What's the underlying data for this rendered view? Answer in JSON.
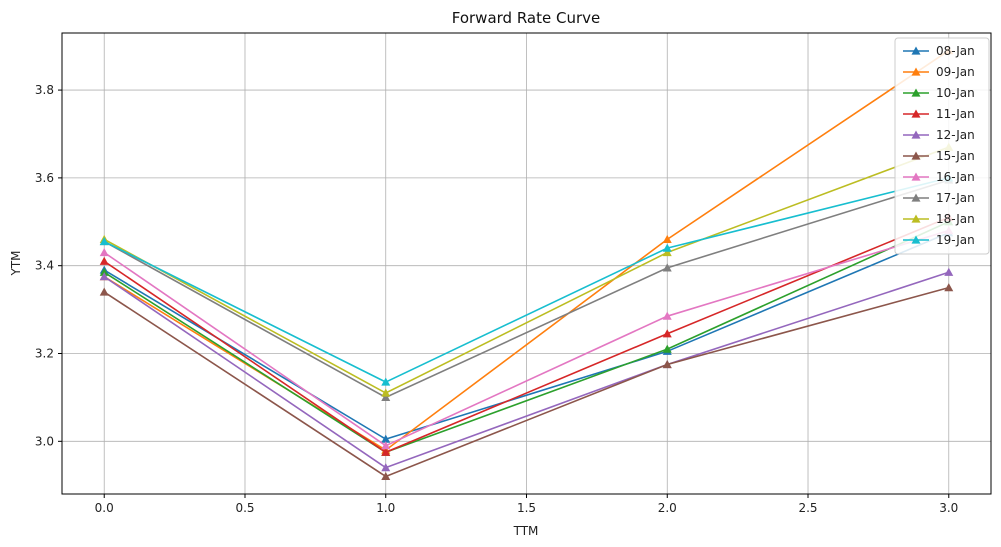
{
  "chart_data": {
    "type": "line",
    "title": "Forward Rate Curve",
    "xlabel": "TTM",
    "ylabel": "YTM",
    "x": [
      0,
      1,
      2,
      3
    ],
    "xlim": [
      -0.15,
      3.15
    ],
    "ylim": [
      2.88,
      3.93
    ],
    "xticks": [
      0,
      0.5,
      1,
      1.5,
      2,
      2.5,
      3
    ],
    "xtick_labels": [
      "0.0",
      "0.5",
      "1.0",
      "1.5",
      "2.0",
      "2.5",
      "3.0"
    ],
    "yticks": [
      3.0,
      3.2,
      3.4,
      3.6,
      3.8
    ],
    "ytick_labels": [
      "3.0",
      "3.2",
      "3.4",
      "3.6",
      "3.8"
    ],
    "grid": true,
    "marker": "triangle",
    "legend_position": "top-right",
    "series": [
      {
        "name": "08-Jan",
        "color": "#1f77b4",
        "values": [
          3.39,
          3.005,
          3.205,
          3.475
        ]
      },
      {
        "name": "09-Jan",
        "color": "#ff7f0e",
        "values": [
          3.375,
          2.98,
          3.46,
          3.89
        ]
      },
      {
        "name": "10-Jan",
        "color": "#2ca02c",
        "values": [
          3.385,
          2.975,
          3.21,
          3.5
        ]
      },
      {
        "name": "11-Jan",
        "color": "#d62728",
        "values": [
          3.41,
          2.975,
          3.245,
          3.51
        ]
      },
      {
        "name": "12-Jan",
        "color": "#9467bd",
        "values": [
          3.375,
          2.94,
          3.175,
          3.385
        ]
      },
      {
        "name": "15-Jan",
        "color": "#8c564b",
        "values": [
          3.34,
          2.92,
          3.175,
          3.35
        ]
      },
      {
        "name": "16-Jan",
        "color": "#e377c2",
        "values": [
          3.43,
          2.99,
          3.285,
          3.48
        ]
      },
      {
        "name": "17-Jan",
        "color": "#7f7f7f",
        "values": [
          3.455,
          3.1,
          3.395,
          3.595
        ]
      },
      {
        "name": "18-Jan",
        "color": "#bcbd22",
        "values": [
          3.46,
          3.11,
          3.43,
          3.67
        ]
      },
      {
        "name": "19-Jan",
        "color": "#17becf",
        "values": [
          3.455,
          3.135,
          3.44,
          3.6
        ]
      }
    ]
  }
}
